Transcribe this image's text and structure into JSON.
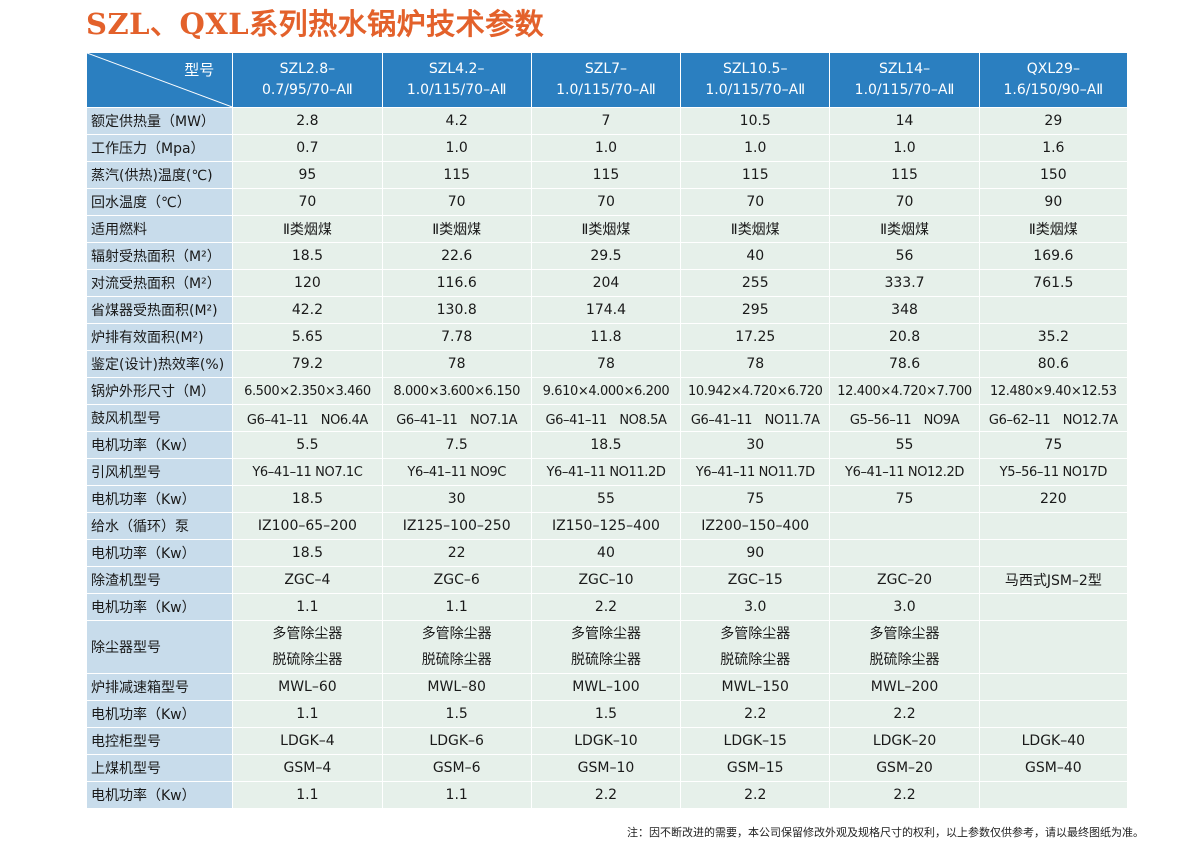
{
  "title": "SZL、QXL系列热水锅炉技术参数",
  "corner_label": "型号",
  "models": [
    {
      "line1": "SZL2.8–",
      "line2": "0.7/95/70–AⅡ"
    },
    {
      "line1": "SZL4.2–",
      "line2": "1.0/115/70–AⅡ"
    },
    {
      "line1": "SZL7–",
      "line2": "1.0/115/70–AⅡ"
    },
    {
      "line1": "SZL10.5–",
      "line2": "1.0/115/70–AⅡ"
    },
    {
      "line1": "SZL14–",
      "line2": "1.0/115/70–AⅡ"
    },
    {
      "line1": "QXL29–",
      "line2": "1.6/150/90–AⅡ"
    }
  ],
  "rows": [
    {
      "label": "额定供热量（MW）",
      "values": [
        "2.8",
        "4.2",
        "7",
        "10.5",
        "14",
        "29"
      ]
    },
    {
      "label": "工作压力（Mpa）",
      "values": [
        "0.7",
        "1.0",
        "1.0",
        "1.0",
        "1.0",
        "1.6"
      ]
    },
    {
      "label": "蒸汽(供热)温度(℃)",
      "values": [
        "95",
        "115",
        "115",
        "115",
        "115",
        "150"
      ]
    },
    {
      "label": "回水温度（℃）",
      "values": [
        "70",
        "70",
        "70",
        "70",
        "70",
        "90"
      ]
    },
    {
      "label": "适用燃料",
      "values": [
        "Ⅱ类烟煤",
        "Ⅱ类烟煤",
        "Ⅱ类烟煤",
        "Ⅱ类烟煤",
        "Ⅱ类烟煤",
        "Ⅱ类烟煤"
      ]
    },
    {
      "label": "辐射受热面积（M²）",
      "values": [
        "18.5",
        "22.6",
        "29.5",
        "40",
        "56",
        "169.6"
      ]
    },
    {
      "label": "对流受热面积（M²）",
      "values": [
        "120",
        "116.6",
        "204",
        "255",
        "333.7",
        "761.5"
      ]
    },
    {
      "label": "省煤器受热面积(M²)",
      "values": [
        "42.2",
        "130.8",
        "174.4",
        "295",
        "348",
        ""
      ]
    },
    {
      "label": "炉排有效面积(M²)",
      "values": [
        "5.65",
        "7.78",
        "11.8",
        "17.25",
        "20.8",
        "35.2"
      ]
    },
    {
      "label": "鉴定(设计)热效率(%)",
      "values": [
        "79.2",
        "78",
        "78",
        "78",
        "78.6",
        "80.6"
      ]
    },
    {
      "label": "锅炉外形尺寸（M）",
      "values": [
        "6.500×2.350×3.460",
        "8.000×3.600×6.150",
        "9.610×4.000×6.200",
        "10.942×4.720×6.720",
        "12.400×4.720×7.700",
        "12.480×9.40×12.53"
      ],
      "tight": true
    },
    {
      "label": "鼓风机型号",
      "values": [
        "G6–41–11　NO6.4A",
        "G6–41–11　NO7.1A",
        "G6–41–11　NO8.5A",
        "G6–41–11　NO11.7A",
        "G5–56–11　NO9A",
        "G6–62–11　NO12.7A"
      ],
      "tight": true
    },
    {
      "label": "电机功率（Kw）",
      "values": [
        "5.5",
        "7.5",
        "18.5",
        "30",
        "55",
        "75"
      ]
    },
    {
      "label": "引风机型号",
      "values": [
        "Y6–41–11 NO7.1C",
        "Y6–41–11 NO9C",
        "Y6–41–11 NO11.2D",
        "Y6–41–11 NO11.7D",
        "Y6–41–11 NO12.2D",
        "Y5–56–11 NO17D"
      ],
      "tight": true
    },
    {
      "label": "电机功率（Kw）",
      "values": [
        "18.5",
        "30",
        "55",
        "75",
        "75",
        "220"
      ]
    },
    {
      "label": "给水（循环）泵",
      "values": [
        "IZ100–65–200",
        "IZ125–100–250",
        "IZ150–125–400",
        "IZ200–150–400",
        "",
        ""
      ]
    },
    {
      "label": "电机功率（Kw）",
      "values": [
        "18.5",
        "22",
        "40",
        "90",
        "",
        ""
      ]
    },
    {
      "label": "除渣机型号",
      "values": [
        "ZGC–4",
        "ZGC–6",
        "ZGC–10",
        "ZGC–15",
        "ZGC–20",
        "马西式JSM–2型"
      ]
    },
    {
      "label": "电机功率（Kw）",
      "values": [
        "1.1",
        "1.1",
        "2.2",
        "3.0",
        "3.0",
        ""
      ]
    },
    {
      "label": "除尘器型号",
      "values": [
        "多管除尘器\n脱硫除尘器",
        "多管除尘器\n脱硫除尘器",
        "多管除尘器\n脱硫除尘器",
        "多管除尘器\n脱硫除尘器",
        "多管除尘器\n脱硫除尘器",
        ""
      ],
      "double": true
    },
    {
      "label": "炉排减速箱型号",
      "values": [
        "MWL–60",
        "MWL–80",
        "MWL–100",
        "MWL–150",
        "MWL–200",
        ""
      ]
    },
    {
      "label": "电机功率（Kw）",
      "values": [
        "1.1",
        "1.5",
        "1.5",
        "2.2",
        "2.2",
        ""
      ]
    },
    {
      "label": "电控柜型号",
      "values": [
        "LDGK–4",
        "LDGK–6",
        "LDGK–10",
        "LDGK–15",
        "LDGK–20",
        "LDGK–40"
      ]
    },
    {
      "label": "上煤机型号",
      "values": [
        "GSM–4",
        "GSM–6",
        "GSM–10",
        "GSM–15",
        "GSM–20",
        "GSM–40"
      ]
    },
    {
      "label": "电机功率（Kw）",
      "values": [
        "1.1",
        "1.1",
        "2.2",
        "2.2",
        "2.2",
        ""
      ]
    }
  ],
  "note": "注：因不断改进的需要，本公司保留修改外观及规格尺寸的权利，以上参数仅供参考，请以最终图纸为准。"
}
